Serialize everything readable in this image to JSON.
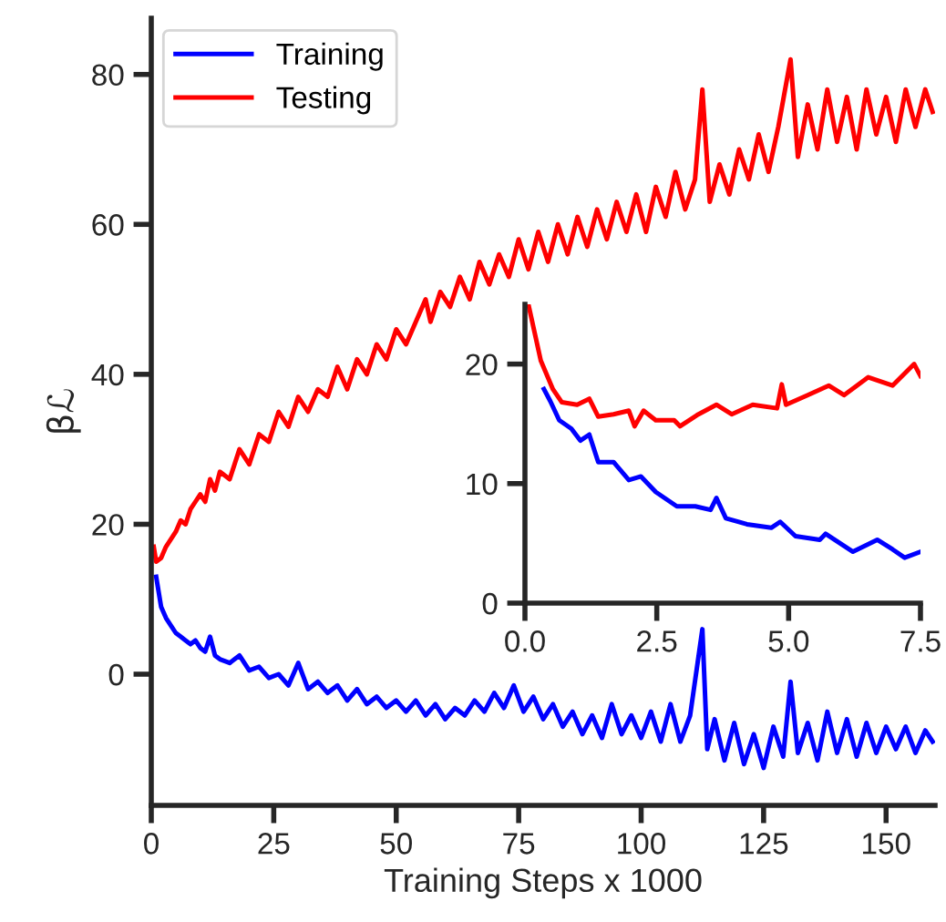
{
  "chart_data": [
    {
      "type": "line",
      "xlabel": "Training Steps x 1000",
      "ylabel": "βℒ",
      "xlim": [
        0,
        160
      ],
      "xticks": [
        0,
        25,
        50,
        75,
        100,
        125,
        150
      ],
      "ylim": [
        -17.5,
        87.5
      ],
      "yticks": [
        0,
        20,
        40,
        60,
        80
      ],
      "grid": false,
      "legend": "top left",
      "marker": "none",
      "line_style": "solid",
      "series": [
        {
          "name": "Training",
          "color": "#0000ff",
          "x": [
            1,
            2,
            3,
            4,
            5,
            6,
            7,
            8,
            9,
            10,
            11,
            12,
            13,
            14,
            16,
            18,
            20,
            22,
            24,
            26,
            28,
            30,
            32,
            34,
            36,
            38,
            40,
            42,
            44,
            46,
            48,
            50,
            52,
            54,
            56,
            58,
            60,
            62,
            64,
            66,
            68,
            70,
            72,
            74,
            76,
            78,
            80,
            82,
            84,
            86,
            88,
            90,
            92,
            94,
            96,
            98,
            100,
            102,
            104,
            106,
            108,
            110,
            112.5,
            113.5,
            115,
            117,
            119,
            121,
            123,
            125,
            127,
            129,
            130.5,
            132,
            134,
            136,
            138,
            140,
            142,
            144,
            146,
            148,
            150,
            152,
            154,
            156,
            158,
            159.5
          ],
          "values": [
            13,
            9,
            7.5,
            6.5,
            5.5,
            5,
            4.5,
            4,
            4.5,
            3.5,
            3,
            5,
            2.5,
            2,
            1.5,
            2.5,
            0.5,
            1,
            -0.5,
            0,
            -1.5,
            1.5,
            -2,
            -1,
            -2.5,
            -1.5,
            -3.5,
            -2,
            -4,
            -3,
            -4.5,
            -3.5,
            -5,
            -3.5,
            -5.5,
            -4,
            -6,
            -4.5,
            -5.5,
            -3.5,
            -5,
            -2.5,
            -4.5,
            -1.5,
            -5,
            -3,
            -6,
            -4,
            -7,
            -5,
            -8,
            -5.5,
            -8.5,
            -4,
            -8,
            -5.5,
            -8.5,
            -5,
            -9,
            -4,
            -9,
            -5.5,
            6,
            -10,
            -6,
            -11.5,
            -6.5,
            -12,
            -8,
            -12.5,
            -7,
            -11,
            -1,
            -10.5,
            -6.5,
            -11.5,
            -5,
            -10.5,
            -6,
            -11,
            -6.5,
            -10.5,
            -7,
            -10,
            -7,
            -10.5,
            -7.5,
            -9
          ]
        },
        {
          "name": "Testing",
          "color": "#ff0000",
          "x": [
            0.5,
            1,
            2,
            3,
            4,
            5,
            6,
            7,
            8,
            9,
            10,
            11,
            12,
            13,
            14,
            16,
            18,
            20,
            22,
            24,
            26,
            28,
            30,
            32,
            34,
            36,
            38,
            40,
            42,
            44,
            46,
            48,
            50,
            52,
            54,
            56,
            57,
            59,
            61,
            63,
            65,
            67,
            69,
            71,
            73,
            75,
            77,
            79,
            81,
            83,
            85,
            87,
            89,
            91,
            93,
            95,
            97,
            99,
            101,
            103,
            105,
            107,
            109,
            111,
            112.5,
            114,
            116,
            118,
            120,
            122,
            124,
            126,
            128,
            130.5,
            132,
            134,
            136,
            138,
            140,
            142,
            144,
            146,
            148,
            150,
            152,
            154,
            156,
            158,
            159.5
          ],
          "values": [
            17,
            15,
            15.5,
            17,
            18,
            19,
            20.5,
            20,
            22,
            23,
            24,
            23,
            26,
            24.5,
            27,
            26,
            30,
            28,
            32,
            31,
            35,
            33,
            37,
            35,
            38,
            37,
            41,
            38,
            42,
            40,
            44,
            42,
            46,
            44,
            47,
            50,
            47,
            51,
            49,
            53,
            50,
            55,
            52,
            56,
            53,
            58,
            54,
            59,
            55,
            60,
            56,
            61,
            57,
            62,
            58,
            63,
            59,
            64,
            59,
            65,
            61,
            67,
            62,
            66,
            78,
            63,
            68,
            64,
            70,
            66,
            72,
            67,
            73,
            82,
            69,
            76,
            70,
            78,
            71,
            77,
            70,
            78,
            72,
            77,
            71,
            78,
            73,
            78,
            75
          ]
        }
      ]
    },
    {
      "type": "line",
      "xlim": [
        0,
        7.5
      ],
      "xticks": [
        {
          "value": 0,
          "label": "0.0"
        },
        2.5,
        {
          "value": 5,
          "label": "5.0"
        },
        7.5
      ],
      "ylim": [
        0,
        25
      ],
      "yticks": [
        0,
        10,
        20
      ],
      "grid": false,
      "marker": "none",
      "line_style": "solid",
      "series": [
        {
          "color": "#0000ff",
          "x": [
            0.36,
            0.48,
            0.65,
            0.88,
            1.05,
            1.22,
            1.39,
            1.68,
            1.97,
            2.2,
            2.48,
            2.88,
            3.23,
            3.52,
            3.63,
            3.81,
            4.21,
            4.67,
            4.84,
            5.13,
            5.59,
            5.7,
            6.22,
            6.68,
            6.97,
            7.2,
            7.5
          ],
          "values": [
            17.9,
            16.9,
            15.3,
            14.6,
            13.6,
            14.1,
            11.8,
            11.8,
            10.3,
            10.6,
            9.3,
            8.1,
            8.1,
            7.8,
            8.8,
            7.1,
            6.6,
            6.3,
            6.8,
            5.6,
            5.3,
            5.8,
            4.3,
            5.3,
            4.5,
            3.8,
            4.3
          ]
        },
        {
          "color": "#ff0000",
          "x": [
            0.07,
            0.3,
            0.53,
            0.7,
            0.99,
            1.22,
            1.39,
            1.68,
            1.97,
            2.08,
            2.25,
            2.48,
            2.83,
            2.94,
            3.29,
            3.63,
            3.92,
            4.32,
            4.78,
            4.87,
            4.95,
            5.36,
            5.76,
            6.05,
            6.51,
            6.97,
            7.38,
            7.5
          ],
          "values": [
            24.9,
            20.3,
            17.9,
            16.8,
            16.6,
            17.1,
            15.6,
            15.8,
            16.1,
            14.8,
            16.1,
            15.3,
            15.3,
            14.8,
            15.8,
            16.6,
            15.8,
            16.6,
            16.3,
            18.3,
            16.6,
            17.4,
            18.2,
            17.4,
            18.9,
            18.2,
            20.0,
            19.0
          ]
        }
      ]
    }
  ]
}
